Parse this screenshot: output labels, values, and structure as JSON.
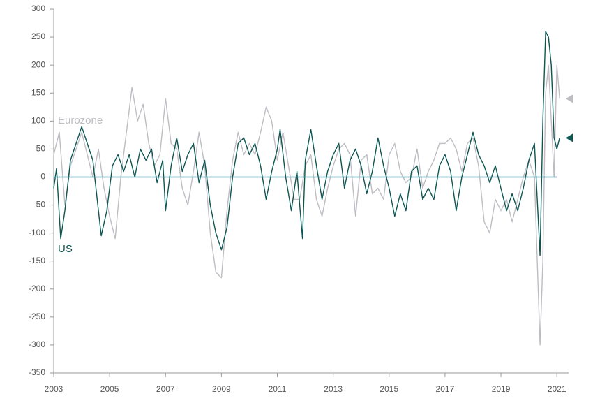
{
  "chart_data": {
    "type": "line",
    "ylim": [
      -350,
      300
    ],
    "yticks": [
      -350,
      -300,
      -250,
      -200,
      -150,
      -100,
      -50,
      0,
      50,
      100,
      150,
      200,
      250,
      300
    ],
    "xlim": [
      2003,
      2021.42
    ],
    "xticks": [
      2003,
      2005,
      2007,
      2009,
      2011,
      2013,
      2015,
      2017,
      2019,
      2021
    ],
    "series": [
      {
        "name": "Eurozone",
        "color": "#bdbdc3",
        "x": [
          2003.0,
          2003.2,
          2003.4,
          2003.6,
          2003.8,
          2004.0,
          2004.2,
          2004.4,
          2004.6,
          2004.8,
          2005.0,
          2005.2,
          2005.4,
          2005.6,
          2005.8,
          2006.0,
          2006.2,
          2006.4,
          2006.6,
          2006.8,
          2007.0,
          2007.2,
          2007.4,
          2007.6,
          2007.8,
          2008.0,
          2008.2,
          2008.4,
          2008.6,
          2008.8,
          2009.0,
          2009.2,
          2009.4,
          2009.6,
          2009.8,
          2010.0,
          2010.2,
          2010.4,
          2010.6,
          2010.8,
          2011.0,
          2011.2,
          2011.4,
          2011.6,
          2011.8,
          2012.0,
          2012.2,
          2012.4,
          2012.6,
          2012.8,
          2013.0,
          2013.2,
          2013.4,
          2013.6,
          2013.8,
          2014.0,
          2014.2,
          2014.4,
          2014.6,
          2014.8,
          2015.0,
          2015.2,
          2015.4,
          2015.6,
          2015.8,
          2016.0,
          2016.2,
          2016.4,
          2016.6,
          2016.8,
          2017.0,
          2017.2,
          2017.4,
          2017.6,
          2017.8,
          2018.0,
          2018.2,
          2018.4,
          2018.6,
          2018.8,
          2019.0,
          2019.2,
          2019.4,
          2019.6,
          2019.8,
          2020.0,
          2020.2,
          2020.4,
          2020.5,
          2020.6,
          2020.7,
          2020.8,
          2020.9,
          2021.0,
          2021.1
        ],
        "values": [
          40,
          80,
          -50,
          20,
          50,
          80,
          40,
          0,
          50,
          -20,
          -70,
          -110,
          0,
          80,
          160,
          100,
          130,
          60,
          20,
          40,
          140,
          60,
          50,
          -20,
          -50,
          10,
          80,
          20,
          -100,
          -170,
          -180,
          -60,
          30,
          80,
          40,
          60,
          40,
          80,
          125,
          100,
          30,
          80,
          20,
          -40,
          -40,
          20,
          40,
          -40,
          -70,
          -20,
          20,
          50,
          60,
          40,
          -70,
          30,
          40,
          -30,
          -20,
          -40,
          40,
          60,
          10,
          -10,
          0,
          50,
          -20,
          10,
          30,
          60,
          60,
          70,
          50,
          10,
          60,
          70,
          20,
          -80,
          -100,
          -40,
          -60,
          -40,
          -80,
          -40,
          0,
          30,
          0,
          -300,
          -150,
          150,
          200,
          100,
          0,
          200,
          140
        ]
      },
      {
        "name": "US",
        "color": "#0d5753",
        "x": [
          2003.0,
          2003.1,
          2003.25,
          2003.4,
          2003.6,
          2003.8,
          2004.0,
          2004.2,
          2004.4,
          2004.7,
          2004.9,
          2005.1,
          2005.3,
          2005.5,
          2005.7,
          2005.9,
          2006.1,
          2006.3,
          2006.5,
          2006.7,
          2006.9,
          2007.0,
          2007.2,
          2007.4,
          2007.6,
          2007.8,
          2008.0,
          2008.2,
          2008.4,
          2008.6,
          2008.8,
          2009.0,
          2009.2,
          2009.4,
          2009.6,
          2009.8,
          2010.0,
          2010.2,
          2010.4,
          2010.6,
          2010.8,
          2011.0,
          2011.1,
          2011.3,
          2011.5,
          2011.7,
          2011.9,
          2012.0,
          2012.2,
          2012.4,
          2012.6,
          2012.8,
          2013.0,
          2013.2,
          2013.4,
          2013.6,
          2013.8,
          2014.0,
          2014.2,
          2014.4,
          2014.6,
          2014.8,
          2015.0,
          2015.2,
          2015.4,
          2015.6,
          2015.8,
          2016.0,
          2016.2,
          2016.4,
          2016.6,
          2016.8,
          2017.0,
          2017.2,
          2017.4,
          2017.6,
          2017.8,
          2018.0,
          2018.2,
          2018.4,
          2018.6,
          2018.8,
          2019.0,
          2019.2,
          2019.4,
          2019.6,
          2019.8,
          2020.0,
          2020.2,
          2020.4,
          2020.5,
          2020.6,
          2020.7,
          2020.8,
          2020.9,
          2021.0,
          2021.1
        ],
        "values": [
          -20,
          15,
          -110,
          -60,
          30,
          60,
          90,
          60,
          30,
          -105,
          -60,
          20,
          40,
          10,
          40,
          0,
          50,
          30,
          50,
          -10,
          30,
          -60,
          20,
          70,
          10,
          40,
          60,
          -10,
          30,
          -50,
          -100,
          -130,
          -90,
          0,
          60,
          70,
          40,
          60,
          20,
          -40,
          10,
          50,
          85,
          0,
          -60,
          10,
          -110,
          30,
          85,
          20,
          -40,
          10,
          40,
          60,
          -20,
          30,
          50,
          20,
          -30,
          10,
          70,
          20,
          -20,
          -70,
          -30,
          -60,
          10,
          20,
          -40,
          -20,
          -40,
          20,
          40,
          10,
          -60,
          0,
          40,
          80,
          40,
          20,
          -10,
          20,
          -20,
          -60,
          -30,
          -60,
          -20,
          30,
          60,
          -140,
          100,
          260,
          250,
          200,
          70,
          50,
          70
        ]
      }
    ]
  }
}
